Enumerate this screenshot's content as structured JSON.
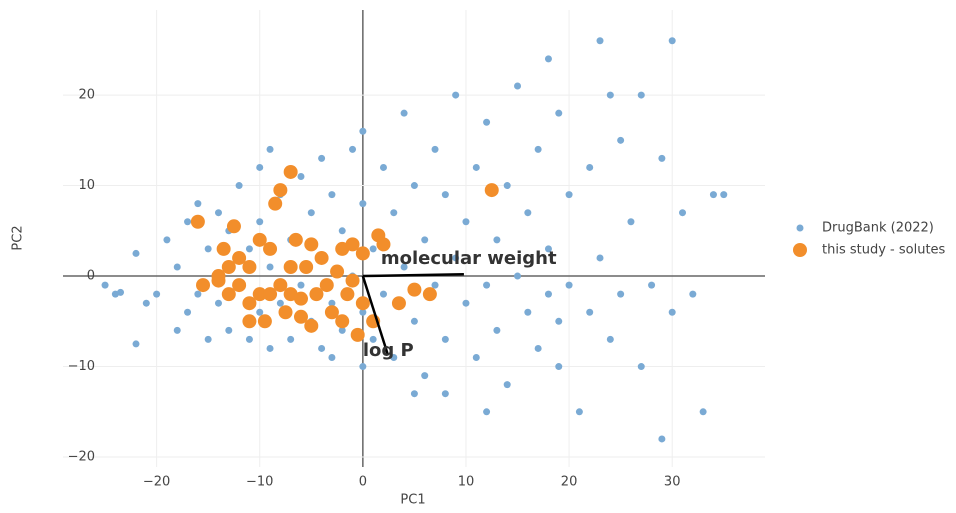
{
  "chart_data": {
    "type": "scatter",
    "x_label": "PC1",
    "y_label": "PC2",
    "xlim": [
      -25.2,
      39
    ],
    "ylim": [
      -21.1,
      29.4
    ],
    "xticks": [
      {
        "value": -20,
        "label": "−20"
      },
      {
        "value": -10,
        "label": "−10"
      },
      0,
      10,
      20,
      30
    ],
    "yticks": [
      {
        "value": -20,
        "label": "−20"
      },
      {
        "value": -10,
        "label": "−10"
      },
      0,
      10,
      20
    ],
    "grid": true,
    "legend": "right",
    "series": [
      {
        "name": "DrugBank (2022)",
        "color": "#7aaad4",
        "x": [
          -25,
          -24,
          -23.5,
          -22,
          -22,
          -21,
          -20,
          -19,
          -18,
          -18,
          -17,
          -17,
          -16,
          -16,
          -15,
          -15,
          -14,
          -14,
          -13,
          -13,
          -12,
          -12,
          -11,
          -11,
          -10,
          -10,
          -10,
          -9,
          -9,
          -9,
          -8,
          -8,
          -7,
          -7,
          -6,
          -6,
          -5,
          -5,
          -4,
          -4,
          -4,
          -3,
          -3,
          -2,
          -2,
          -1,
          -1,
          0,
          0,
          0,
          1,
          1,
          2,
          2,
          3,
          3,
          4,
          4,
          5,
          5,
          6,
          6,
          7,
          7,
          8,
          8,
          9,
          9,
          10,
          10,
          11,
          11,
          12,
          12,
          13,
          13,
          14,
          14,
          15,
          15,
          16,
          16,
          17,
          17,
          18,
          18,
          19,
          19,
          20,
          20,
          21,
          22,
          22,
          23,
          23,
          24,
          25,
          25,
          26,
          27,
          27,
          28,
          29,
          29,
          30,
          30,
          31,
          32,
          33,
          34,
          35,
          12,
          8,
          -3,
          5,
          0,
          19,
          24,
          18
        ],
        "values": [
          -1,
          -2,
          -1.8,
          2.5,
          -7.5,
          -3,
          -2,
          4,
          -6,
          1,
          6,
          -4,
          8,
          -2,
          3,
          -7,
          7,
          -3,
          5,
          -6,
          10,
          -1,
          3,
          -7,
          12,
          6,
          -4,
          14,
          1,
          -8,
          9,
          -3,
          4,
          -7,
          11,
          -1,
          7,
          -5,
          13,
          2,
          -8,
          9,
          -3,
          5,
          -6,
          14,
          0,
          8,
          -4,
          16,
          3,
          -7,
          12,
          -2,
          7,
          -9,
          18,
          1,
          10,
          -5,
          4,
          -11,
          14,
          -1,
          9,
          -7,
          20,
          2,
          6,
          -3,
          12,
          -9,
          17,
          -1,
          4,
          -6,
          10,
          -12,
          21,
          0,
          7,
          -4,
          14,
          -8,
          3,
          -2,
          18,
          -10,
          9,
          -1,
          -15,
          12,
          -4,
          26,
          2,
          -7,
          15,
          -2,
          6,
          -10,
          20,
          -1,
          -18,
          13,
          26,
          -4,
          7,
          -2,
          -15,
          9,
          9,
          -15,
          -13,
          -9,
          -13,
          -10,
          -5,
          20,
          24
        ]
      },
      {
        "name": "this study - solutes",
        "color": "#f28e2b",
        "x": [
          -16,
          -15.5,
          -14,
          -13.5,
          -13,
          -13,
          -12.5,
          -12,
          -12,
          -11,
          -11,
          -10,
          -10,
          -9.5,
          -9,
          -9,
          -8.5,
          -8,
          -8,
          -7.5,
          -7,
          -7,
          -7,
          -6.5,
          -6,
          -6,
          -5.5,
          -5,
          -5,
          -4.5,
          -4,
          -3.5,
          -3,
          -2.5,
          -2,
          -2,
          -1.5,
          -1,
          -1,
          -0.5,
          0,
          0,
          1,
          1.5,
          2,
          3.5,
          5,
          6.5,
          12.5,
          -11,
          -14
        ],
        "values": [
          6,
          -1,
          -0.5,
          3,
          -2,
          1,
          5.5,
          2,
          -1,
          -3,
          1,
          4,
          -2,
          -5,
          3,
          -2,
          8,
          9.5,
          -1,
          -4,
          11.5,
          1,
          -2,
          4,
          -2.5,
          -4.5,
          1,
          3.5,
          -5.5,
          -2,
          2,
          -1,
          -4,
          0.5,
          3,
          -5,
          -2,
          3.5,
          -0.5,
          -6.5,
          -3,
          2.5,
          -5,
          4.5,
          3.5,
          -3,
          -1.5,
          -2,
          9.5,
          -5,
          0
        ]
      }
    ],
    "vectors": [
      {
        "label": "molecular weight",
        "x": 9.8,
        "y": 0.2
      },
      {
        "label": "log P",
        "x": 2.4,
        "y": -8.6
      }
    ]
  }
}
